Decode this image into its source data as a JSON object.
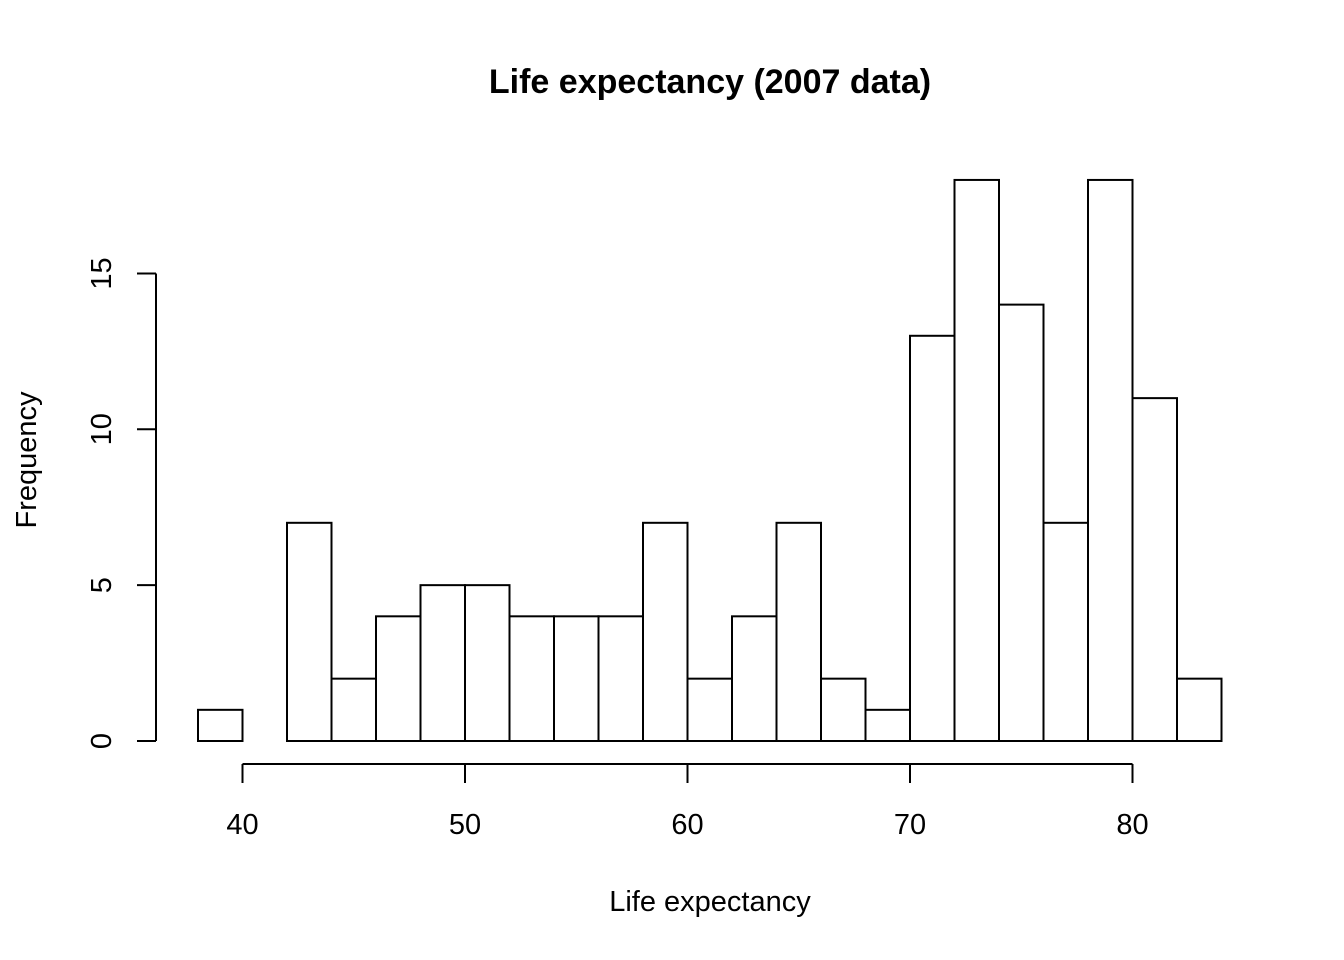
{
  "chart_data": {
    "type": "bar",
    "title": "Life expectancy (2007 data)",
    "xlabel": "Life expectancy",
    "ylabel": "Frequency",
    "bins": [
      {
        "start": 38,
        "end": 40,
        "count": 1
      },
      {
        "start": 40,
        "end": 42,
        "count": 0
      },
      {
        "start": 42,
        "end": 44,
        "count": 7
      },
      {
        "start": 44,
        "end": 46,
        "count": 2
      },
      {
        "start": 46,
        "end": 48,
        "count": 4
      },
      {
        "start": 48,
        "end": 50,
        "count": 5
      },
      {
        "start": 50,
        "end": 52,
        "count": 5
      },
      {
        "start": 52,
        "end": 54,
        "count": 4
      },
      {
        "start": 54,
        "end": 56,
        "count": 4
      },
      {
        "start": 56,
        "end": 58,
        "count": 4
      },
      {
        "start": 58,
        "end": 60,
        "count": 7
      },
      {
        "start": 60,
        "end": 62,
        "count": 2
      },
      {
        "start": 62,
        "end": 64,
        "count": 4
      },
      {
        "start": 64,
        "end": 66,
        "count": 7
      },
      {
        "start": 66,
        "end": 68,
        "count": 2
      },
      {
        "start": 68,
        "end": 70,
        "count": 1
      },
      {
        "start": 70,
        "end": 72,
        "count": 13
      },
      {
        "start": 72,
        "end": 74,
        "count": 18
      },
      {
        "start": 74,
        "end": 76,
        "count": 14
      },
      {
        "start": 76,
        "end": 78,
        "count": 7
      },
      {
        "start": 78,
        "end": 80,
        "count": 18
      },
      {
        "start": 80,
        "end": 82,
        "count": 11
      },
      {
        "start": 82,
        "end": 84,
        "count": 2
      }
    ],
    "xticks": [
      40,
      50,
      60,
      70,
      80
    ],
    "xtick_labels": [
      "40",
      "50",
      "60",
      "70",
      "80"
    ],
    "yticks": [
      0,
      5,
      10,
      15
    ],
    "ytick_labels": [
      "0",
      "5",
      "10",
      "15"
    ],
    "xlim": [
      38,
      84
    ],
    "ylim": [
      0,
      18
    ],
    "grid": false,
    "legend": "none"
  }
}
